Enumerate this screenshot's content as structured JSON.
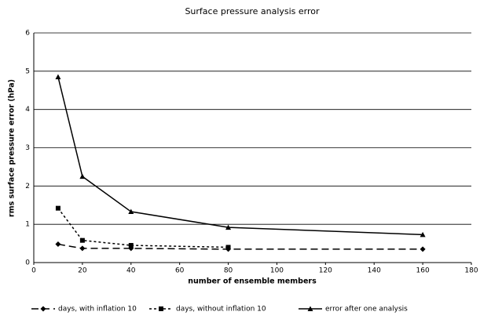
{
  "chart_data": {
    "type": "line",
    "title": "Surface pressure analysis error",
    "x_label": "number of ensemble members",
    "y_label": "rms surface pressure error (hPa)",
    "series": [
      {
        "name": "days, with inflation 10",
        "color": "#000000",
        "marker": "diamond",
        "dash": "long",
        "x": [
          10,
          20,
          40,
          80,
          160
        ],
        "values": [
          0.48,
          0.37,
          0.37,
          0.35,
          0.35
        ]
      },
      {
        "name": "days, without inflation 10",
        "color": "#000000",
        "marker": "square",
        "dash": "short",
        "x": [
          10,
          20,
          40,
          80
        ],
        "values": [
          1.42,
          0.58,
          0.45,
          0.4
        ]
      },
      {
        "name": "error after one analysis",
        "color": "#000000",
        "marker": "triangle",
        "dash": "solid",
        "x": [
          10,
          20,
          40,
          80,
          160
        ],
        "values": [
          4.85,
          2.25,
          1.33,
          0.92,
          0.73
        ]
      }
    ],
    "xlim": [
      0,
      180
    ],
    "xticks": [
      0,
      20,
      40,
      60,
      80,
      100,
      120,
      140,
      160,
      180
    ],
    "ylim": [
      0,
      6
    ],
    "yticks": [
      0,
      1,
      2,
      3,
      4,
      5,
      6
    ],
    "grid": true,
    "legend": "bottom"
  }
}
